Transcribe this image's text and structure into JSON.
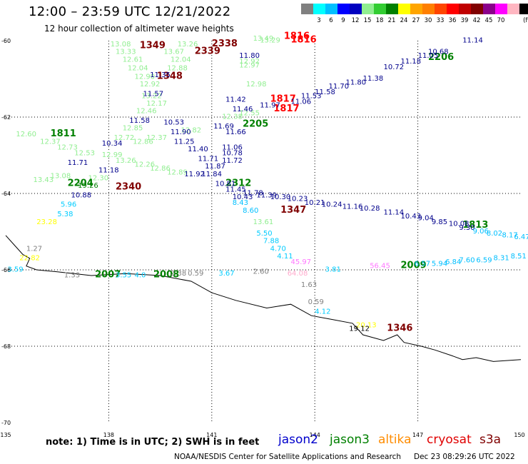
{
  "header": {
    "title": "12:00 – 23:59 UTC 12/21/2022",
    "subtitle": "12 hour collection of altimeter wave heights"
  },
  "scale": {
    "colors": [
      "#808080",
      "#00ffff",
      "#00bfff",
      "#0000ff",
      "#0000c0",
      "#90ee90",
      "#32cd32",
      "#008000",
      "#ffff00",
      "#ffa500",
      "#ff7f00",
      "#ff4500",
      "#ff0000",
      "#c00000",
      "#800000",
      "#8b008b",
      "#ff00ff",
      "#ffb6c1",
      "#000000"
    ],
    "labels": [
      "3",
      "6",
      "9",
      "12",
      "15",
      "18",
      "21",
      "24",
      "27",
      "30",
      "33",
      "36",
      "39",
      "42",
      "45",
      "70",
      "(ft)"
    ]
  },
  "footer": {
    "note": "note: 1) Time is in UTC; 2) SWH is in feet",
    "satellites": [
      {
        "name": "jason2",
        "color": "#0000cc"
      },
      {
        "name": "jason3",
        "color": "#008000"
      },
      {
        "name": "altika",
        "color": "#ff8c00"
      },
      {
        "name": "cryosat",
        "color": "#e00000"
      },
      {
        "name": "s3a",
        "color": "#800000"
      }
    ],
    "credit": "NOAA/NESDIS Center for Satellite Applications and Research",
    "timestamp": "Dec 23 08:29:26 UTC 2022"
  },
  "chart_data": {
    "type": "scatter",
    "title": "12:00 – 23:59 UTC 12/21/2022",
    "xlim": [
      135,
      150
    ],
    "ylim": [
      -70,
      -60
    ],
    "xticks": [
      135,
      138,
      141,
      144,
      147,
      150
    ],
    "yticks": [
      -60,
      -62,
      -64,
      -66,
      -68,
      -70
    ],
    "grid": true,
    "coastline": [
      [
        135,
        -65.1
      ],
      [
        135.2,
        -65.3
      ],
      [
        135.5,
        -65.6
      ],
      [
        135.7,
        -65.7
      ],
      [
        135.6,
        -65.9
      ],
      [
        135.9,
        -66.0
      ],
      [
        136.5,
        -66.05
      ],
      [
        137.5,
        -66.15
      ],
      [
        138.5,
        -66.1
      ],
      [
        139.5,
        -66.15
      ],
      [
        140.4,
        -66.3
      ],
      [
        141.0,
        -66.6
      ],
      [
        141.7,
        -66.8
      ],
      [
        142.6,
        -67.0
      ],
      [
        143.3,
        -66.9
      ],
      [
        143.9,
        -67.2
      ],
      [
        144.5,
        -67.3
      ],
      [
        145.1,
        -67.4
      ],
      [
        145.4,
        -67.7
      ],
      [
        146.0,
        -67.85
      ],
      [
        146.4,
        -67.7
      ],
      [
        146.6,
        -67.9
      ],
      [
        147.1,
        -68.0
      ],
      [
        147.5,
        -68.1
      ],
      [
        148.0,
        -68.25
      ],
      [
        148.3,
        -68.35
      ],
      [
        148.7,
        -68.3
      ],
      [
        149.2,
        -68.4
      ],
      [
        150,
        -68.35
      ]
    ],
    "labels": [
      {
        "text": "13.08",
        "lon": 138.05,
        "lat": -60.15,
        "c": "#90ee90"
      },
      {
        "text": "13.33",
        "lon": 138.2,
        "lat": -60.35,
        "c": "#90ee90"
      },
      {
        "text": "12.61",
        "lon": 138.4,
        "lat": -60.55,
        "c": "#90ee90"
      },
      {
        "text": "12.04",
        "lon": 138.55,
        "lat": -60.78,
        "c": "#90ee90"
      },
      {
        "text": "12.90",
        "lon": 138.75,
        "lat": -61.0,
        "c": "#90ee90"
      },
      {
        "text": "12.92",
        "lon": 138.9,
        "lat": -61.2,
        "c": "#90ee90"
      },
      {
        "text": "13.22",
        "lon": 138.95,
        "lat": -61.5,
        "c": "#90ee90"
      },
      {
        "text": "12.17",
        "lon": 139.1,
        "lat": -61.7,
        "c": "#90ee90"
      },
      {
        "text": "12.46",
        "lon": 138.8,
        "lat": -61.9,
        "c": "#90ee90"
      },
      {
        "text": "12.85",
        "lon": 138.4,
        "lat": -62.35,
        "c": "#90ee90"
      },
      {
        "text": "12.72",
        "lon": 138.15,
        "lat": -62.6,
        "c": "#90ee90"
      },
      {
        "text": "12.99",
        "lon": 137.8,
        "lat": -63.05,
        "c": "#90ee90"
      },
      {
        "text": "13.26",
        "lon": 138.2,
        "lat": -63.2,
        "c": "#90ee90"
      },
      {
        "text": "12.30",
        "lon": 137.4,
        "lat": -63.65,
        "c": "#90ee90"
      },
      {
        "text": "12.86",
        "lon": 138.7,
        "lat": -62.7,
        "c": "#90ee90"
      },
      {
        "text": "12.37",
        "lon": 139.1,
        "lat": -62.6,
        "c": "#90ee90"
      },
      {
        "text": "12.26",
        "lon": 138.75,
        "lat": -63.3,
        "c": "#90ee90"
      },
      {
        "text": "12.86",
        "lon": 139.2,
        "lat": -63.4,
        "c": "#90ee90"
      },
      {
        "text": "12.89",
        "lon": 139.7,
        "lat": -63.5,
        "c": "#90ee90"
      },
      {
        "text": "13.26",
        "lon": 140.0,
        "lat": -60.15,
        "c": "#90ee90"
      },
      {
        "text": "13.67",
        "lon": 139.6,
        "lat": -60.35,
        "c": "#90ee90"
      },
      {
        "text": "12.04",
        "lon": 139.8,
        "lat": -60.55,
        "c": "#90ee90"
      },
      {
        "text": "12.88",
        "lon": 139.7,
        "lat": -60.78,
        "c": "#90ee90"
      },
      {
        "text": "12.82",
        "lon": 140.1,
        "lat": -62.4,
        "c": "#90ee90"
      },
      {
        "text": "13.49",
        "lon": 142.2,
        "lat": -60.0,
        "c": "#90ee90"
      },
      {
        "text": "13.29",
        "lon": 142.4,
        "lat": -60.05,
        "c": "#90ee90"
      },
      {
        "text": "12.92",
        "lon": 141.8,
        "lat": -60.6,
        "c": "#90ee90"
      },
      {
        "text": "12.97",
        "lon": 141.8,
        "lat": -60.7,
        "c": "#90ee90"
      },
      {
        "text": "12.98",
        "lon": 142.0,
        "lat": -61.2,
        "c": "#90ee90"
      },
      {
        "text": "12.55",
        "lon": 141.8,
        "lat": -61.95,
        "c": "#90ee90"
      },
      {
        "text": "12.38",
        "lon": 141.3,
        "lat": -62.05,
        "c": "#90ee90"
      },
      {
        "text": "12.60",
        "lon": 135.3,
        "lat": -62.5,
        "c": "#90ee90"
      },
      {
        "text": "12.37",
        "lon": 136.0,
        "lat": -62.7,
        "c": "#90ee90"
      },
      {
        "text": "12.73",
        "lon": 136.5,
        "lat": -62.85,
        "c": "#90ee90"
      },
      {
        "text": "12.53",
        "lon": 137.0,
        "lat": -63.0,
        "c": "#90ee90"
      },
      {
        "text": "13.08",
        "lon": 136.3,
        "lat": -63.6,
        "c": "#90ee90"
      },
      {
        "text": "13.43",
        "lon": 135.8,
        "lat": -63.7,
        "c": "#90ee90"
      },
      {
        "text": "13.61",
        "lon": 142.2,
        "lat": -64.8,
        "c": "#90ee90"
      },
      {
        "text": "1811",
        "lon": 136.3,
        "lat": -62.5,
        "c": "#008000",
        "s": 13
      },
      {
        "text": "2204",
        "lon": 136.8,
        "lat": -63.8,
        "c": "#008000",
        "s": 13
      },
      {
        "text": "2205",
        "lon": 141.9,
        "lat": -62.25,
        "c": "#008000",
        "s": 13
      },
      {
        "text": "2312",
        "lon": 141.4,
        "lat": -63.8,
        "c": "#008000",
        "s": 13
      },
      {
        "text": "2206",
        "lon": 147.3,
        "lat": -60.5,
        "c": "#008000",
        "s": 13
      },
      {
        "text": "1813",
        "lon": 148.3,
        "lat": -64.9,
        "c": "#008000",
        "s": 13
      },
      {
        "text": "2009",
        "lon": 146.5,
        "lat": -65.95,
        "c": "#008000",
        "s": 13
      },
      {
        "text": "2007",
        "lon": 137.6,
        "lat": -66.2,
        "c": "#008000",
        "s": 13
      },
      {
        "text": "2008",
        "lon": 139.3,
        "lat": -66.2,
        "c": "#008000",
        "s": 13
      },
      {
        "text": "1349",
        "lon": 138.9,
        "lat": -60.2,
        "c": "#800000",
        "s": 13
      },
      {
        "text": "1348",
        "lon": 139.4,
        "lat": -61.0,
        "c": "#800000",
        "s": 13
      },
      {
        "text": "2339",
        "lon": 140.5,
        "lat": -60.35,
        "c": "#800000",
        "s": 13
      },
      {
        "text": "2338",
        "lon": 141.0,
        "lat": -60.15,
        "c": "#800000",
        "s": 13
      },
      {
        "text": "2340",
        "lon": 138.2,
        "lat": -63.9,
        "c": "#800000",
        "s": 13
      },
      {
        "text": "1347",
        "lon": 143.0,
        "lat": -64.5,
        "c": "#800000",
        "s": 13
      },
      {
        "text": "1346",
        "lon": 146.1,
        "lat": -67.6,
        "c": "#800000",
        "s": 13
      },
      {
        "text": "1816",
        "lon": 143.3,
        "lat": -60.05,
        "c": "#ff0000",
        "s": 13
      },
      {
        "text": "1816",
        "lon": 143.1,
        "lat": -59.95,
        "c": "#ff0000",
        "s": 13
      },
      {
        "text": "1817",
        "lon": 142.7,
        "lat": -61.6,
        "c": "#ff0000",
        "s": 13
      },
      {
        "text": "1817",
        "lon": 142.8,
        "lat": -61.85,
        "c": "#ff0000",
        "s": 13
      },
      {
        "text": "11.35",
        "lon": 139.2,
        "lat": -60.95,
        "c": "#00008b"
      },
      {
        "text": "11.57",
        "lon": 139.0,
        "lat": -61.45,
        "c": "#00008b"
      },
      {
        "text": "11.58",
        "lon": 138.6,
        "lat": -62.15,
        "c": "#00008b"
      },
      {
        "text": "10.53",
        "lon": 139.6,
        "lat": -62.2,
        "c": "#00008b"
      },
      {
        "text": "11.90",
        "lon": 139.8,
        "lat": -62.45,
        "c": "#00008b"
      },
      {
        "text": "11.25",
        "lon": 139.9,
        "lat": -62.7,
        "c": "#00008b"
      },
      {
        "text": "11.40",
        "lon": 140.3,
        "lat": -62.9,
        "c": "#00008b"
      },
      {
        "text": "11.71",
        "lon": 140.6,
        "lat": -63.15,
        "c": "#00008b"
      },
      {
        "text": "11.87",
        "lon": 140.8,
        "lat": -63.35,
        "c": "#00008b"
      },
      {
        "text": "11.92",
        "lon": 140.2,
        "lat": -63.55,
        "c": "#00008b"
      },
      {
        "text": "11.84",
        "lon": 140.7,
        "lat": -63.55,
        "c": "#00008b"
      },
      {
        "text": "11.69",
        "lon": 141.05,
        "lat": -62.3,
        "c": "#00008b"
      },
      {
        "text": "11.66",
        "lon": 141.4,
        "lat": -62.45,
        "c": "#00008b"
      },
      {
        "text": "11.06",
        "lon": 141.3,
        "lat": -62.85,
        "c": "#00008b"
      },
      {
        "text": "10.78",
        "lon": 141.3,
        "lat": -63.0,
        "c": "#00008b"
      },
      {
        "text": "11.72",
        "lon": 141.3,
        "lat": -63.2,
        "c": "#00008b"
      },
      {
        "text": "10.81",
        "lon": 141.1,
        "lat": -63.8,
        "c": "#00008b"
      },
      {
        "text": "11.45",
        "lon": 141.4,
        "lat": -63.95,
        "c": "#00008b"
      },
      {
        "text": "11.78",
        "lon": 141.9,
        "lat": -64.05,
        "c": "#00008b"
      },
      {
        "text": "10.43",
        "lon": 141.6,
        "lat": -64.15,
        "c": "#00008b"
      },
      {
        "text": "11.80",
        "lon": 141.8,
        "lat": -60.45,
        "c": "#00008b"
      },
      {
        "text": "11.42",
        "lon": 141.4,
        "lat": -61.6,
        "c": "#00008b"
      },
      {
        "text": "11.46",
        "lon": 141.6,
        "lat": -61.85,
        "c": "#00008b"
      },
      {
        "text": "11.97",
        "lon": 142.4,
        "lat": -61.75,
        "c": "#00008b"
      },
      {
        "text": "11.06",
        "lon": 143.3,
        "lat": -61.65,
        "c": "#00008b"
      },
      {
        "text": "11.53",
        "lon": 143.6,
        "lat": -61.5,
        "c": "#00008b"
      },
      {
        "text": "11.58",
        "lon": 144.0,
        "lat": -61.4,
        "c": "#00008b"
      },
      {
        "text": "11.70",
        "lon": 144.4,
        "lat": -61.25,
        "c": "#00008b"
      },
      {
        "text": "11.80",
        "lon": 144.9,
        "lat": -61.15,
        "c": "#00008b"
      },
      {
        "text": "11.38",
        "lon": 145.4,
        "lat": -61.05,
        "c": "#00008b"
      },
      {
        "text": "10.72",
        "lon": 146.0,
        "lat": -60.75,
        "c": "#00008b"
      },
      {
        "text": "11.18",
        "lon": 146.5,
        "lat": -60.6,
        "c": "#00008b"
      },
      {
        "text": "11.05",
        "lon": 147.0,
        "lat": -60.45,
        "c": "#00008b"
      },
      {
        "text": "10.68",
        "lon": 147.3,
        "lat": -60.35,
        "c": "#00008b"
      },
      {
        "text": "11.14",
        "lon": 148.3,
        "lat": -60.05,
        "c": "#00008b"
      },
      {
        "text": "11.39",
        "lon": 142.3,
        "lat": -64.1,
        "c": "#00008b"
      },
      {
        "text": "10.30",
        "lon": 142.7,
        "lat": -64.15,
        "c": "#00008b"
      },
      {
        "text": "10.23",
        "lon": 143.2,
        "lat": -64.2,
        "c": "#00008b"
      },
      {
        "text": "10.21",
        "lon": 143.7,
        "lat": -64.3,
        "c": "#00008b"
      },
      {
        "text": "10.24",
        "lon": 144.2,
        "lat": -64.35,
        "c": "#00008b"
      },
      {
        "text": "11.16",
        "lon": 144.8,
        "lat": -64.4,
        "c": "#00008b"
      },
      {
        "text": "10.28",
        "lon": 145.3,
        "lat": -64.45,
        "c": "#00008b"
      },
      {
        "text": "11.14",
        "lon": 146.0,
        "lat": -64.55,
        "c": "#00008b"
      },
      {
        "text": "10.43",
        "lon": 146.5,
        "lat": -64.65,
        "c": "#00008b"
      },
      {
        "text": "9.04",
        "lon": 147.0,
        "lat": -64.7,
        "c": "#00008b"
      },
      {
        "text": "9.85",
        "lon": 147.4,
        "lat": -64.8,
        "c": "#00008b"
      },
      {
        "text": "10.08",
        "lon": 147.9,
        "lat": -64.85,
        "c": "#00008b"
      },
      {
        "text": "9.30",
        "lon": 148.2,
        "lat": -64.95,
        "c": "#00008b"
      },
      {
        "text": "10.34",
        "lon": 137.8,
        "lat": -62.75,
        "c": "#00008b"
      },
      {
        "text": "11.71",
        "lon": 136.8,
        "lat": -63.25,
        "c": "#00008b"
      },
      {
        "text": "11.18",
        "lon": 137.7,
        "lat": -63.45,
        "c": "#00008b"
      },
      {
        "text": "10.88",
        "lon": 136.9,
        "lat": -64.1,
        "c": "#00008b"
      },
      {
        "text": "19.26",
        "lon": 137.1,
        "lat": -63.85,
        "c": "#008000"
      },
      {
        "text": "9.06",
        "lon": 148.6,
        "lat": -65.05,
        "c": "#00bfff"
      },
      {
        "text": "8.02",
        "lon": 149.0,
        "lat": -65.1,
        "c": "#00bfff"
      },
      {
        "text": "8.17",
        "lon": 149.45,
        "lat": -65.15,
        "c": "#00bfff"
      },
      {
        "text": "6.47",
        "lon": 149.8,
        "lat": -65.2,
        "c": "#00bfff"
      },
      {
        "text": "8.51",
        "lon": 149.7,
        "lat": -65.7,
        "c": "#00bfff"
      },
      {
        "text": "8.31",
        "lon": 149.2,
        "lat": -65.75,
        "c": "#00bfff"
      },
      {
        "text": "6.59",
        "lon": 148.7,
        "lat": -65.8,
        "c": "#00bfff"
      },
      {
        "text": "7.60",
        "lon": 148.2,
        "lat": -65.8,
        "c": "#00bfff"
      },
      {
        "text": "6.84",
        "lon": 147.8,
        "lat": -65.85,
        "c": "#00bfff"
      },
      {
        "text": "5.94",
        "lon": 147.4,
        "lat": -65.9,
        "c": "#00bfff"
      },
      {
        "text": "6.57",
        "lon": 146.9,
        "lat": -65.9,
        "c": "#00bfff"
      },
      {
        "text": "8.43",
        "lon": 141.6,
        "lat": -64.3,
        "c": "#00bfff"
      },
      {
        "text": "8.60",
        "lon": 141.9,
        "lat": -64.5,
        "c": "#00bfff"
      },
      {
        "text": "5.50",
        "lon": 142.3,
        "lat": -65.1,
        "c": "#00ccff"
      },
      {
        "text": "7.88",
        "lon": 142.5,
        "lat": -65.3,
        "c": "#00ccff"
      },
      {
        "text": "4.70",
        "lon": 142.7,
        "lat": -65.5,
        "c": "#00ccff"
      },
      {
        "text": "4.11",
        "lon": 142.9,
        "lat": -65.7,
        "c": "#00ccff"
      },
      {
        "text": "5.96",
        "lon": 136.6,
        "lat": -64.35,
        "c": "#00ccff"
      },
      {
        "text": "5.38",
        "lon": 136.5,
        "lat": -64.6,
        "c": "#00ccff"
      },
      {
        "text": "3.59",
        "lon": 135.05,
        "lat": -66.05,
        "c": "#00ccff"
      },
      {
        "text": "3.55",
        "lon": 138.2,
        "lat": -66.2,
        "c": "#00ccff"
      },
      {
        "text": "4.0",
        "lon": 138.75,
        "lat": -66.2,
        "c": "#00ccff"
      },
      {
        "text": "3.67",
        "lon": 141.2,
        "lat": -66.15,
        "c": "#00ccff"
      },
      {
        "text": "3.81",
        "lon": 144.3,
        "lat": -66.05,
        "c": "#00ccff"
      },
      {
        "text": "4.12",
        "lon": 144.0,
        "lat": -67.15,
        "c": "#00ccff"
      },
      {
        "text": "45.97",
        "lon": 143.3,
        "lat": -65.85,
        "c": "#ff77ff"
      },
      {
        "text": "56.45",
        "lon": 145.6,
        "lat": -65.95,
        "c": "#ff77ff"
      },
      {
        "text": "64.08",
        "lon": 143.2,
        "lat": -66.15,
        "c": "#ffaacc"
      },
      {
        "text": "1.27",
        "lon": 135.6,
        "lat": -65.5,
        "c": "#808080"
      },
      {
        "text": "1.33",
        "lon": 136.7,
        "lat": -66.2,
        "c": "#808080"
      },
      {
        "text": "0.59",
        "lon": 140.3,
        "lat": -66.15,
        "c": "#808080"
      },
      {
        "text": "2.38",
        "lon": 139.8,
        "lat": -66.15,
        "c": "#808080"
      },
      {
        "text": "2.60",
        "lon": 142.2,
        "lat": -66.1,
        "c": "#808080"
      },
      {
        "text": "1.63",
        "lon": 143.6,
        "lat": -66.45,
        "c": "#808080"
      },
      {
        "text": "0.59",
        "lon": 143.8,
        "lat": -66.9,
        "c": "#808080"
      },
      {
        "text": "23.28",
        "lon": 135.9,
        "lat": -64.8,
        "c": "#ffff00"
      },
      {
        "text": "22.82",
        "lon": 135.4,
        "lat": -65.75,
        "c": "#ffff00"
      },
      {
        "text": "20.13",
        "lon": 145.2,
        "lat": -67.5,
        "c": "#ffff00"
      },
      {
        "text": "19.12",
        "lon": 145.0,
        "lat": -67.6,
        "c": "#000000"
      }
    ]
  }
}
